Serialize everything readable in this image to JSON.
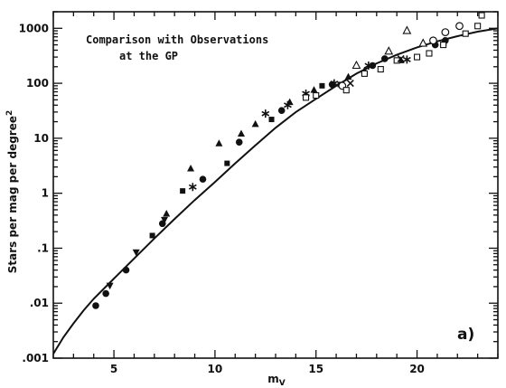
{
  "chart_data": {
    "type": "scatter",
    "title_lines": [
      "Comparison with Observations",
      "at the GP"
    ],
    "panel_label": "a)",
    "xlabel": "m",
    "xlabel_sub": "V",
    "ylabel": "Stars per mag per degree",
    "ylabel_sup": "2",
    "xlim": [
      2,
      24
    ],
    "ylim": [
      0.001,
      2000
    ],
    "yscale": "log",
    "xticks": [
      5,
      10,
      15,
      20
    ],
    "xtick_labels": [
      "5",
      "10",
      "15",
      "20"
    ],
    "yticks": [
      0.001,
      0.01,
      0.1,
      1,
      10,
      100,
      1000
    ],
    "ytick_labels": [
      ".001",
      ".01",
      ".1",
      "1",
      "10",
      "100",
      "1000"
    ],
    "grid": false,
    "model_curve": {
      "x": [
        2.0,
        2.5,
        3.0,
        3.5,
        4.0,
        5.0,
        6.0,
        7.0,
        8.0,
        9.0,
        10.0,
        11.0,
        12.0,
        13.0,
        14.0,
        15.0,
        16.0,
        17.0,
        18.0,
        19.0,
        20.0,
        21.0,
        22.0,
        23.0,
        24.0
      ],
      "y": [
        0.0012,
        0.0024,
        0.0043,
        0.0074,
        0.012,
        0.028,
        0.065,
        0.15,
        0.34,
        0.75,
        1.6,
        3.5,
        7.4,
        15.5,
        30,
        52,
        90,
        150,
        230,
        330,
        450,
        580,
        720,
        870,
        1000
      ]
    },
    "series": [
      {
        "marker": "filled-circle",
        "x": [
          4.1,
          4.6,
          5.6,
          7.4,
          9.4,
          11.2,
          13.3,
          15.8,
          17.8,
          18.4,
          20.9,
          21.4
        ],
        "y": [
          0.009,
          0.015,
          0.04,
          0.28,
          1.8,
          8.5,
          32,
          95,
          210,
          280,
          500,
          600
        ]
      },
      {
        "marker": "filled-triangle",
        "x": [
          7.6,
          8.8,
          10.2,
          11.3,
          12.0,
          13.7,
          14.9,
          16.6,
          17.4,
          19.2,
          21.3
        ],
        "y": [
          0.42,
          2.8,
          8,
          12,
          18,
          45,
          75,
          130,
          170,
          260,
          550
        ]
      },
      {
        "marker": "filled-square",
        "x": [
          6.9,
          8.4,
          10.6,
          12.8,
          15.3,
          16.2
        ],
        "y": [
          0.17,
          1.1,
          3.5,
          22,
          90,
          95
        ]
      },
      {
        "marker": "inverted-triangle",
        "x": [
          4.8,
          6.1,
          7.5
        ],
        "y": [
          0.021,
          0.085,
          0.33
        ]
      },
      {
        "marker": "star",
        "x": [
          8.9,
          12.5,
          13.6,
          14.5,
          15.9,
          17.6,
          19.5
        ],
        "y": [
          1.3,
          28,
          40,
          65,
          100,
          210,
          270
        ]
      },
      {
        "marker": "open-circle",
        "x": [
          16.3,
          20.8,
          21.4,
          22.1
        ],
        "y": [
          90,
          600,
          850,
          1100
        ]
      },
      {
        "marker": "open-square",
        "x": [
          14.5,
          15.0,
          16.5,
          17.4,
          18.2,
          19.0,
          20.0,
          20.6,
          21.3,
          22.4,
          23.0
        ],
        "y": [
          55,
          60,
          75,
          150,
          180,
          260,
          300,
          350,
          500,
          800,
          1100
        ]
      },
      {
        "marker": "open-triangle",
        "x": [
          17.0,
          18.6,
          19.5,
          20.3
        ],
        "y": [
          210,
          380,
          900,
          530
        ]
      },
      {
        "marker": "cross",
        "x": [
          16.7,
          19.2
        ],
        "y": [
          100,
          280
        ]
      }
    ],
    "outlier_point": {
      "marker": "open-square",
      "x": 23.2,
      "y": 2500
    }
  }
}
